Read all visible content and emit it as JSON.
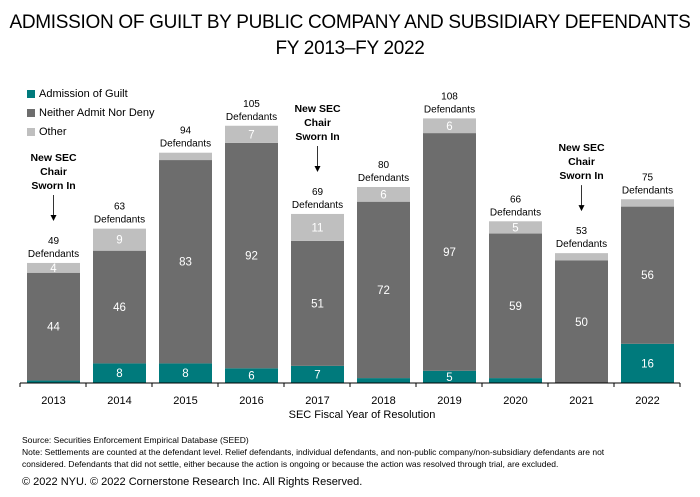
{
  "title_line1": "ADMISSION OF GUILT BY PUBLIC COMPANY AND SUBSIDIARY DEFENDANTS",
  "title_line2": "FY 2013–FY 2022",
  "legend": [
    {
      "label": "Admission of Guilt",
      "color": "#007a7c"
    },
    {
      "label": "Neither Admit Nor Deny",
      "color": "#6d6d6d"
    },
    {
      "label": "Other",
      "color": "#bfbfbf"
    }
  ],
  "annotation_text": [
    "New SEC",
    "Chair",
    "Sworn In"
  ],
  "annotation_years": [
    "2013",
    "2017",
    "2021"
  ],
  "total_suffix": "Defendants",
  "source": "Source: Securities Enforcement Empirical Database (SEED)",
  "note_line1": "Note: Settlements are counted at the defendant level. Relief defendants, individual defendants, and non-public company/non-subsidiary defendants are not",
  "note_line2": "considered. Defendants that did not settle, either because the action is ongoing or because the action was resolved through trial, are excluded.",
  "copyright": "© 2022 NYU. © 2022 Cornerstone Research Inc. All Rights Reserved.",
  "chart_data": {
    "type": "bar",
    "stacked": true,
    "title": "ADMISSION OF GUILT BY PUBLIC COMPANY AND SUBSIDIARY DEFENDANTS FY 2013–FY 2022",
    "xlabel": "SEC Fiscal Year of Resolution",
    "ylabel": "",
    "categories": [
      "2013",
      "2014",
      "2015",
      "2016",
      "2017",
      "2018",
      "2019",
      "2020",
      "2021",
      "2022"
    ],
    "series": [
      {
        "name": "Admission of Guilt",
        "color": "#007a7c",
        "values": [
          1,
          8,
          8,
          6,
          7,
          2,
          5,
          2,
          0,
          16
        ],
        "labels": [
          "",
          "8",
          "8",
          "6",
          "7",
          "",
          "5",
          "",
          "",
          "16"
        ]
      },
      {
        "name": "Neither Admit Nor Deny",
        "color": "#6d6d6d",
        "values": [
          44,
          46,
          83,
          92,
          51,
          72,
          97,
          59,
          50,
          56
        ],
        "labels": [
          "44",
          "46",
          "83",
          "92",
          "51",
          "72",
          "97",
          "59",
          "50",
          "56"
        ]
      },
      {
        "name": "Other",
        "color": "#bfbfbf",
        "values": [
          4,
          9,
          3,
          7,
          11,
          6,
          6,
          5,
          3,
          3
        ],
        "labels": [
          "4",
          "9",
          "",
          "7",
          "11",
          "6",
          "6",
          "5",
          "",
          ""
        ]
      }
    ],
    "totals": [
      49,
      63,
      94,
      105,
      69,
      80,
      108,
      66,
      53,
      75
    ],
    "ylim": [
      0,
      110
    ],
    "grid": false,
    "legend_position": "top-left",
    "annotations": [
      {
        "text": "New SEC Chair Sworn In",
        "category": "2013"
      },
      {
        "text": "New SEC Chair Sworn In",
        "category": "2017"
      },
      {
        "text": "New SEC Chair Sworn In",
        "category": "2021"
      }
    ]
  }
}
